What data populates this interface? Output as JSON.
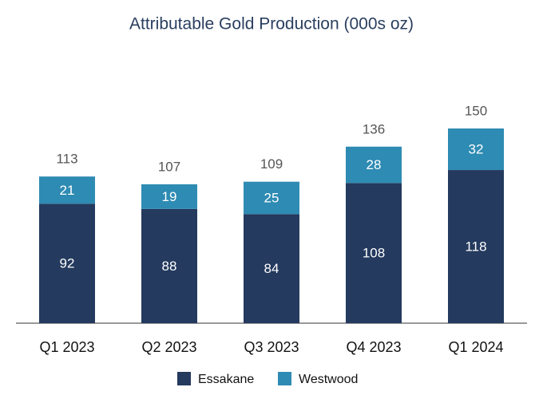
{
  "chart_data": {
    "type": "stacked-bar",
    "title": "Attributable Gold Production (000s oz)",
    "categories": [
      "Q1 2023",
      "Q2 2023",
      "Q3 2023",
      "Q4 2023",
      "Q1 2024"
    ],
    "series": [
      {
        "name": "Essakane",
        "color": "#243a5e",
        "values": [
          92,
          88,
          84,
          108,
          118
        ]
      },
      {
        "name": "Westwood",
        "color": "#2e8bb3",
        "values": [
          21,
          19,
          25,
          28,
          32
        ]
      }
    ],
    "totals": [
      113,
      107,
      109,
      136,
      150
    ],
    "legend": "bottom"
  }
}
